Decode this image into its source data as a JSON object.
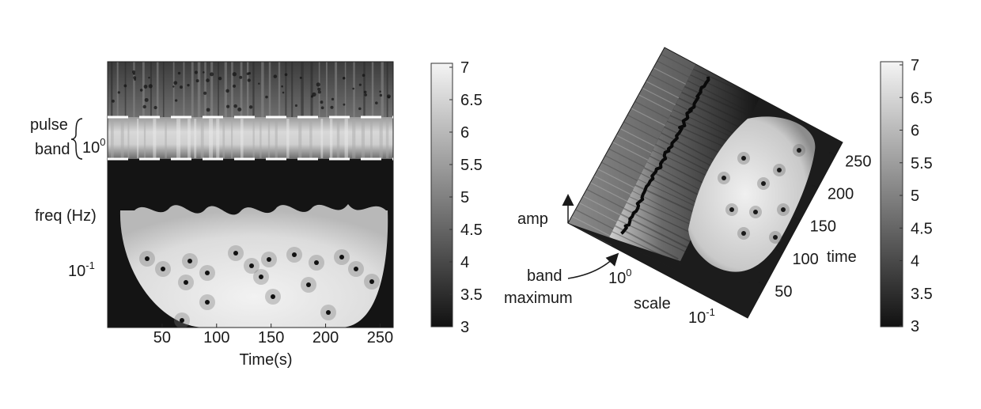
{
  "chart_data": [
    {
      "type": "heatmap",
      "title": "",
      "xlabel": "Time(s)",
      "ylabel": "freq (Hz)",
      "x_ticks": [
        "50",
        "100",
        "150",
        "200",
        "250"
      ],
      "x_tick_values": [
        50,
        100,
        150,
        200,
        250
      ],
      "xlim": [
        0,
        262
      ],
      "y_scale": "log",
      "y_ticks": [
        {
          "base": "10",
          "exp": "0",
          "value": 1
        },
        {
          "base": "10",
          "exp": "-1",
          "value": 0.1
        }
      ],
      "annotations": {
        "band_label_line1": "pulse",
        "band_label_line2": "band",
        "band_style": "white dashed lines"
      },
      "colorbar": {
        "ticks": [
          "7",
          "6.5",
          "6",
          "5.5",
          "5",
          "4.5",
          "4",
          "3.5",
          "3"
        ],
        "range": [
          3,
          7
        ],
        "colormap": "grayscale"
      },
      "colors": {
        "min": "#111111",
        "max": "#f4f4f4",
        "band_line": "#ffffff"
      }
    },
    {
      "type": "surface",
      "title": "",
      "axis_labels": {
        "amp": "amp",
        "scale": "scale",
        "time": "time"
      },
      "time_ticks": [
        "50",
        "100",
        "150",
        "200",
        "250"
      ],
      "scale_ticks": [
        {
          "base": "10",
          "exp": "0",
          "value": 1
        },
        {
          "base": "10",
          "exp": "-1",
          "value": 0.1
        }
      ],
      "annotation": {
        "line1": "band",
        "line2": "maximum"
      },
      "colorbar": {
        "ticks": [
          "7",
          "6.5",
          "6",
          "5.5",
          "5",
          "4.5",
          "4",
          "3.5",
          "3"
        ],
        "range": [
          3,
          7
        ],
        "colormap": "grayscale"
      },
      "colors": {
        "ridge": "#0a0a0a",
        "surface_light": "#eeeeee",
        "surface_dark": "#1a1a1a"
      }
    }
  ]
}
